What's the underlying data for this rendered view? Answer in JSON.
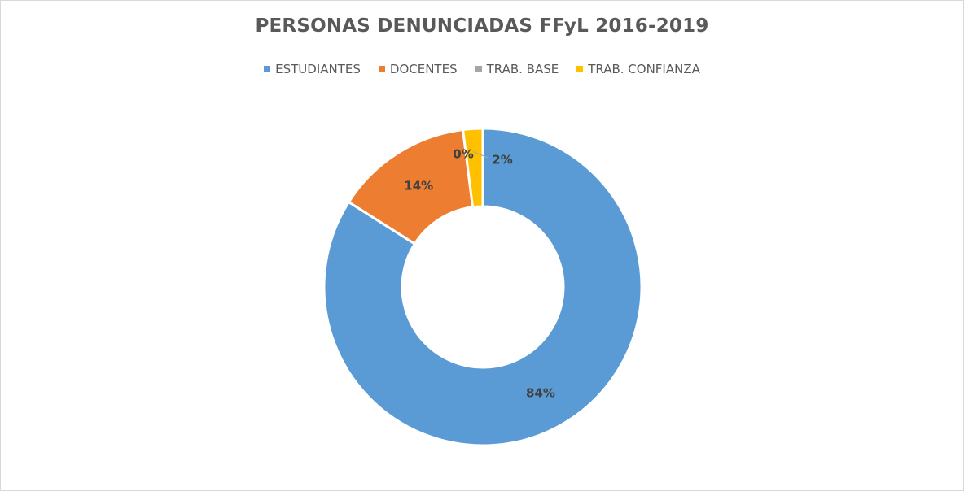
{
  "chart_data": {
    "type": "pie",
    "subtype": "doughnut",
    "title": "PERSONAS DENUNCIADAS FFyL 2016-2019",
    "legend_position": "top",
    "categories": [
      "ESTUDIANTES",
      "DOCENTES",
      "TRAB. BASE",
      "TRAB. CONFIANZA"
    ],
    "values": [
      84,
      14,
      0,
      2
    ],
    "labels": [
      "84%",
      "14%",
      "0%",
      "2%"
    ],
    "colors": [
      "#5B9BD5",
      "#ED7D31",
      "#A5A5A5",
      "#FFC000"
    ]
  }
}
